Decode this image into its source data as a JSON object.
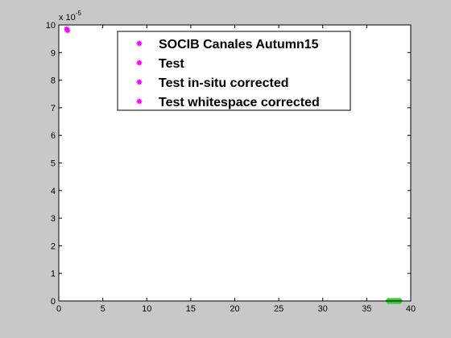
{
  "chart_data": {
    "type": "scatter",
    "xlim": [
      0,
      40
    ],
    "ylim": [
      0,
      10
    ],
    "y_multiplier_label": {
      "prefix": "x 10",
      "exponent": "-5"
    },
    "x_ticks": [
      0,
      5,
      10,
      15,
      20,
      25,
      30,
      35,
      40
    ],
    "y_ticks": [
      0,
      1,
      2,
      3,
      4,
      5,
      6,
      7,
      8,
      9,
      10
    ],
    "grid": false,
    "legend_position": "top-center",
    "series": [
      {
        "name": "SOCIB Canales Autumn15",
        "color": "#ff00ff",
        "marker": "*",
        "points": [
          [
            0.9,
            9.85
          ],
          [
            1.0,
            9.8
          ]
        ]
      },
      {
        "name": "Test",
        "color": "#ff00ff",
        "marker": "*",
        "points": []
      },
      {
        "name": "Test in-situ corrected",
        "color": "#ff00ff",
        "marker": "*",
        "points": []
      },
      {
        "name": "Test whitespace corrected",
        "color": "#ff00ff",
        "marker": "*",
        "points": []
      },
      {
        "color": "#33cc33",
        "marker": "o",
        "points": [
          [
            37.5,
            0
          ],
          [
            37.8,
            0
          ],
          [
            38.1,
            0
          ],
          [
            38.4,
            0
          ],
          [
            38.7,
            0
          ]
        ]
      }
    ]
  }
}
